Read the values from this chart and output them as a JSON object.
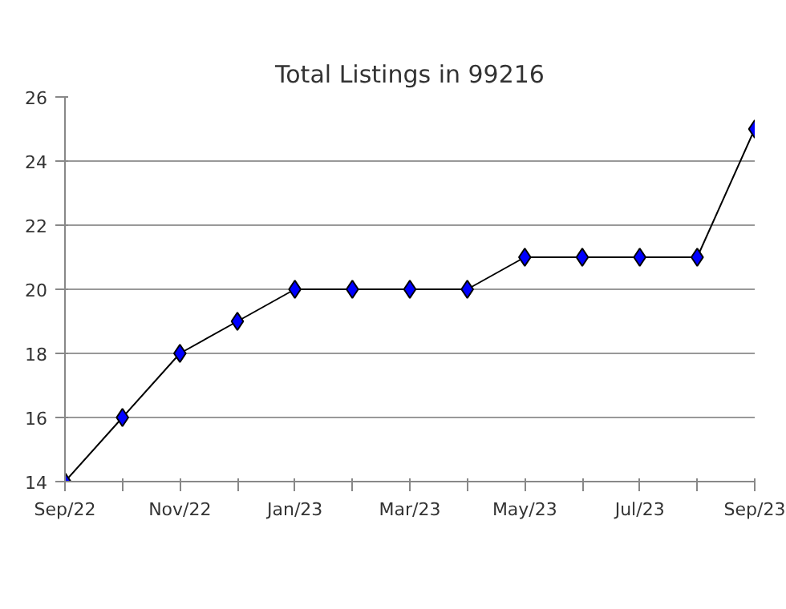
{
  "chart_data": {
    "type": "line",
    "title": "Total Listings in 99216",
    "categories": [
      "Sep/22",
      null,
      "Nov/22",
      null,
      "Jan/23",
      null,
      "Mar/23",
      null,
      "May/23",
      null,
      "Jul/23",
      null,
      "Sep/23"
    ],
    "series": [
      {
        "color": "#0000ff",
        "values": [
          14,
          16,
          18,
          19,
          20,
          20,
          20,
          20,
          21,
          21,
          21,
          21,
          25
        ]
      }
    ],
    "ylim": [
      14,
      26
    ],
    "yticks": [
      14,
      16,
      18,
      20,
      22,
      24,
      26
    ],
    "grid": "y",
    "marker": "diamond",
    "line_style": "solid"
  }
}
